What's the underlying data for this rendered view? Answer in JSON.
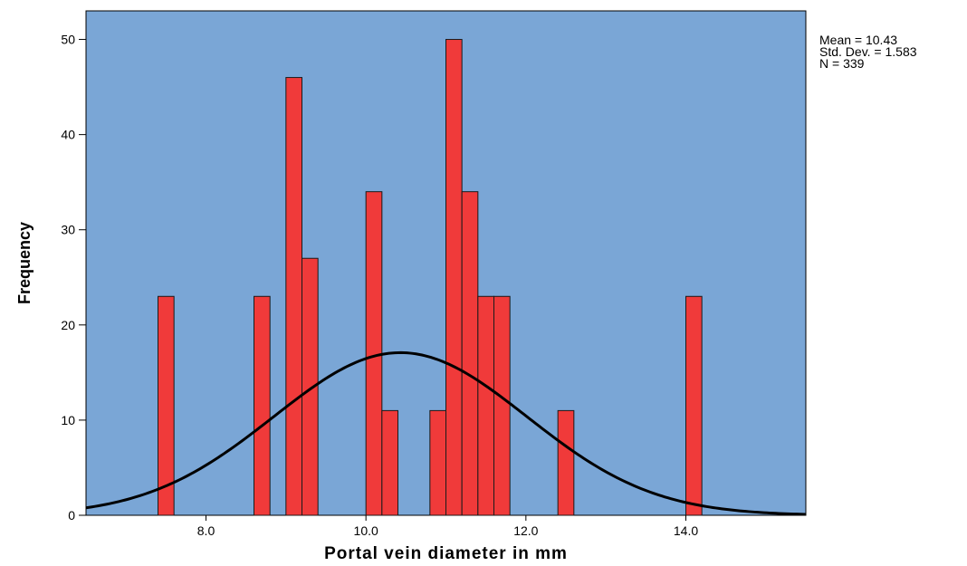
{
  "chart_data": {
    "type": "bar",
    "subtype": "histogram",
    "xlabel": "Portal vein diameter in mm",
    "ylabel": "Frequency",
    "xlim": [
      6.5,
      15.5
    ],
    "ylim": [
      0,
      53
    ],
    "xticks": [
      8.0,
      10.0,
      12.0,
      14.0
    ],
    "xtick_labels": [
      "8.0",
      "10.0",
      "12.0",
      "14.0"
    ],
    "yticks": [
      0,
      10,
      20,
      30,
      40,
      50
    ],
    "ytick_labels": [
      "0",
      "10",
      "20",
      "30",
      "40",
      "50"
    ],
    "bin_width": 0.2,
    "bins": [
      {
        "x0": 7.4,
        "x1": 7.6,
        "value": 23
      },
      {
        "x0": 8.6,
        "x1": 8.8,
        "value": 23
      },
      {
        "x0": 9.0,
        "x1": 9.2,
        "value": 46
      },
      {
        "x0": 9.2,
        "x1": 9.4,
        "value": 27
      },
      {
        "x0": 10.0,
        "x1": 10.2,
        "value": 34
      },
      {
        "x0": 10.2,
        "x1": 10.4,
        "value": 11
      },
      {
        "x0": 10.8,
        "x1": 11.0,
        "value": 11
      },
      {
        "x0": 11.0,
        "x1": 11.2,
        "value": 50
      },
      {
        "x0": 11.2,
        "x1": 11.4,
        "value": 34
      },
      {
        "x0": 11.4,
        "x1": 11.6,
        "value": 23
      },
      {
        "x0": 11.6,
        "x1": 11.8,
        "value": 23
      },
      {
        "x0": 12.4,
        "x1": 12.6,
        "value": 11
      },
      {
        "x0": 14.0,
        "x1": 14.2,
        "value": 23
      }
    ],
    "normal_curve": {
      "mean": 10.43,
      "std": 1.583,
      "n": 339
    },
    "stats_lines": [
      "Mean = 10.43",
      "Std. Dev. = 1.583",
      "N = 339"
    ],
    "grid": false,
    "colors": {
      "plot_background": "#7aa6d6",
      "bar_fill": "#f03a3a",
      "bar_stroke": "#1a1a1a",
      "curve": "#000000",
      "axis": "#000000"
    }
  }
}
